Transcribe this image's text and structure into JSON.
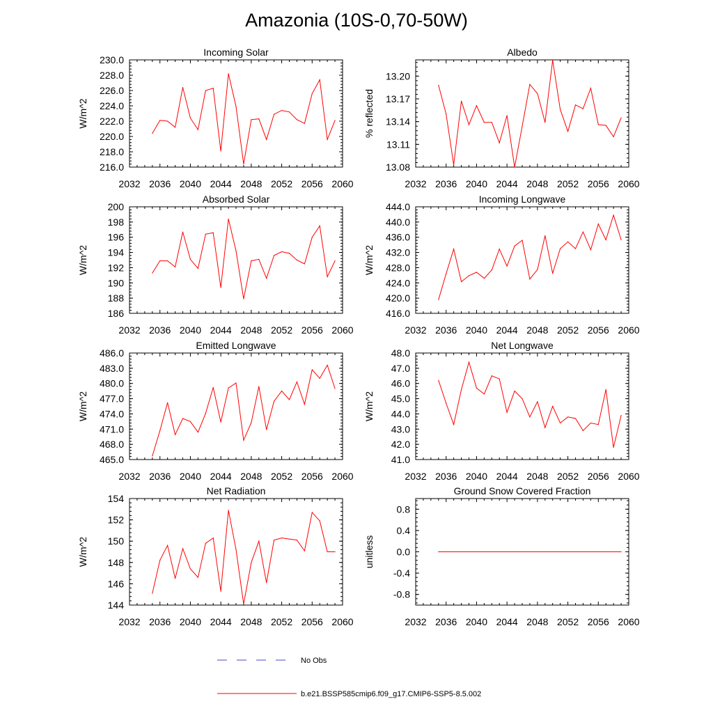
{
  "title": "Amazonia (10S-0,70-50W)",
  "colors": {
    "model": "#ff0000",
    "obs": "#4444cc"
  },
  "legend": {
    "obs_label": "No Obs",
    "model_label": "b.e21.BSSP585cmip6.f09_g17.CMIP6-SSP5-8.5.002"
  },
  "chart_data": [
    {
      "type": "line",
      "title": "Incoming Solar",
      "ylabel": "W/m^2",
      "xlim": [
        2032,
        2060
      ],
      "ylim": [
        216,
        230
      ],
      "xticks": [
        2032,
        2036,
        2040,
        2044,
        2048,
        2052,
        2056,
        2060
      ],
      "yticks": [
        "216.0",
        "218.0",
        "220.0",
        "222.0",
        "224.0",
        "226.0",
        "228.0",
        "230.0"
      ],
      "x": [
        2035,
        2036,
        2037,
        2038,
        2039,
        2040,
        2041,
        2042,
        2043,
        2044,
        2045,
        2046,
        2047,
        2048,
        2049,
        2050,
        2051,
        2052,
        2053,
        2054,
        2055,
        2056,
        2057,
        2058,
        2059
      ],
      "series": [
        {
          "values": [
            220.4,
            222.1,
            222.0,
            221.2,
            226.4,
            222.4,
            220.9,
            226.0,
            226.3,
            218.1,
            228.2,
            223.9,
            216.4,
            222.2,
            222.3,
            219.6,
            222.9,
            223.4,
            223.2,
            222.2,
            221.7,
            225.6,
            227.4,
            219.6,
            222.1
          ]
        }
      ]
    },
    {
      "type": "line",
      "title": "Albedo",
      "ylabel": "% reflected",
      "xlim": [
        2032,
        2060
      ],
      "ylim": [
        13.08,
        13.2214
      ],
      "xticks": [
        2032,
        2036,
        2040,
        2044,
        2048,
        2052,
        2056,
        2060
      ],
      "yticks": [
        "13.08",
        "13.11",
        "13.14",
        "13.17",
        "13.20"
      ],
      "x": [
        2035,
        2036,
        2037,
        2038,
        2039,
        2040,
        2041,
        2042,
        2043,
        2044,
        2045,
        2046,
        2047,
        2048,
        2049,
        2050,
        2051,
        2052,
        2053,
        2054,
        2055,
        2056,
        2057,
        2058,
        2059
      ],
      "series": [
        {
          "values": [
            13.188,
            13.15,
            13.083,
            13.167,
            13.136,
            13.161,
            13.139,
            13.139,
            13.112,
            13.148,
            13.08,
            13.134,
            13.189,
            13.177,
            13.139,
            13.221,
            13.156,
            13.127,
            13.162,
            13.157,
            13.184,
            13.136,
            13.135,
            13.12,
            13.145
          ]
        }
      ]
    },
    {
      "type": "line",
      "title": "Absorbed Solar",
      "ylabel": "W/m^2",
      "xlim": [
        2032,
        2060
      ],
      "ylim": [
        186,
        200
      ],
      "xticks": [
        2032,
        2036,
        2040,
        2044,
        2048,
        2052,
        2056,
        2060
      ],
      "yticks": [
        "186",
        "188",
        "190",
        "192",
        "194",
        "196",
        "198",
        "200"
      ],
      "x": [
        2035,
        2036,
        2037,
        2038,
        2039,
        2040,
        2041,
        2042,
        2043,
        2044,
        2045,
        2046,
        2047,
        2048,
        2049,
        2050,
        2051,
        2052,
        2053,
        2054,
        2055,
        2056,
        2057,
        2058,
        2059
      ],
      "series": [
        {
          "values": [
            191.3,
            192.9,
            192.9,
            192.1,
            196.7,
            193.1,
            191.9,
            196.4,
            196.6,
            189.4,
            198.4,
            194.2,
            187.9,
            192.9,
            193.1,
            190.6,
            193.6,
            194.1,
            193.9,
            193.0,
            192.5,
            196.0,
            197.5,
            190.8,
            192.9
          ]
        }
      ]
    },
    {
      "type": "line",
      "title": "Incoming Longwave",
      "ylabel": "W/m^2",
      "xlim": [
        2032,
        2060
      ],
      "ylim": [
        416,
        444
      ],
      "xticks": [
        2032,
        2036,
        2040,
        2044,
        2048,
        2052,
        2056,
        2060
      ],
      "yticks": [
        "416.0",
        "420.0",
        "424.0",
        "428.0",
        "432.0",
        "436.0",
        "440.0",
        "444.0"
      ],
      "x": [
        2035,
        2036,
        2037,
        2038,
        2039,
        2040,
        2041,
        2042,
        2043,
        2044,
        2045,
        2046,
        2047,
        2048,
        2049,
        2050,
        2051,
        2052,
        2053,
        2054,
        2055,
        2056,
        2057,
        2058,
        2059
      ],
      "series": [
        {
          "values": [
            419.6,
            426.4,
            432.9,
            424.3,
            425.9,
            426.8,
            425.2,
            427.4,
            432.9,
            428.4,
            433.7,
            435.2,
            425.0,
            427.5,
            436.4,
            426.5,
            433.0,
            434.8,
            433.0,
            437.4,
            432.7,
            439.5,
            435.3,
            441.8,
            435.3
          ]
        }
      ]
    },
    {
      "type": "line",
      "title": "Emitted Longwave",
      "ylabel": "W/m^2",
      "xlim": [
        2032,
        2060
      ],
      "ylim": [
        465,
        486
      ],
      "xticks": [
        2032,
        2036,
        2040,
        2044,
        2048,
        2052,
        2056,
        2060
      ],
      "yticks": [
        "465.0",
        "468.0",
        "471.0",
        "474.0",
        "477.0",
        "480.0",
        "483.0",
        "486.0"
      ],
      "x": [
        2035,
        2036,
        2037,
        2038,
        2039,
        2040,
        2041,
        2042,
        2043,
        2044,
        2045,
        2046,
        2047,
        2048,
        2049,
        2050,
        2051,
        2052,
        2053,
        2054,
        2055,
        2056,
        2057,
        2058,
        2059
      ],
      "series": [
        {
          "values": [
            465.7,
            470.7,
            476.2,
            469.9,
            473.1,
            472.5,
            470.4,
            474.1,
            479.2,
            472.4,
            479.1,
            480.1,
            468.8,
            472.3,
            479.4,
            470.9,
            476.5,
            478.5,
            476.8,
            480.3,
            475.9,
            482.7,
            481.0,
            483.6,
            479.0
          ]
        }
      ]
    },
    {
      "type": "line",
      "title": "Net Longwave",
      "ylabel": "W/m^2",
      "xlim": [
        2032,
        2060
      ],
      "ylim": [
        41,
        48
      ],
      "xticks": [
        2032,
        2036,
        2040,
        2044,
        2048,
        2052,
        2056,
        2060
      ],
      "yticks": [
        "41.0",
        "42.0",
        "43.0",
        "44.0",
        "45.0",
        "46.0",
        "47.0",
        "48.0"
      ],
      "x": [
        2035,
        2036,
        2037,
        2038,
        2039,
        2040,
        2041,
        2042,
        2043,
        2044,
        2045,
        2046,
        2047,
        2048,
        2049,
        2050,
        2051,
        2052,
        2053,
        2054,
        2055,
        2056,
        2057,
        2058,
        2059
      ],
      "series": [
        {
          "values": [
            46.2,
            44.7,
            43.3,
            45.6,
            47.4,
            45.7,
            45.3,
            46.5,
            46.3,
            44.1,
            45.5,
            45.0,
            43.8,
            44.8,
            43.1,
            44.5,
            43.4,
            43.8,
            43.7,
            42.9,
            43.4,
            43.3,
            45.6,
            41.8,
            43.9
          ]
        }
      ]
    },
    {
      "type": "line",
      "title": "Net Radiation",
      "ylabel": "W/m^2",
      "xlim": [
        2032,
        2060
      ],
      "ylim": [
        144,
        154
      ],
      "xticks": [
        2032,
        2036,
        2040,
        2044,
        2048,
        2052,
        2056,
        2060
      ],
      "yticks": [
        "144",
        "146",
        "148",
        "150",
        "152",
        "154"
      ],
      "x": [
        2035,
        2036,
        2037,
        2038,
        2039,
        2040,
        2041,
        2042,
        2043,
        2044,
        2045,
        2046,
        2047,
        2048,
        2049,
        2050,
        2051,
        2052,
        2053,
        2054,
        2055,
        2056,
        2057,
        2058,
        2059
      ],
      "series": [
        {
          "values": [
            145.1,
            148.2,
            149.6,
            146.5,
            149.3,
            147.4,
            146.6,
            149.8,
            150.3,
            145.3,
            152.9,
            149.2,
            144.1,
            148.0,
            150.0,
            146.1,
            150.1,
            150.3,
            150.2,
            150.1,
            149.1,
            152.7,
            151.9,
            149.0,
            149.0
          ]
        }
      ]
    },
    {
      "type": "line",
      "title": "Ground Snow Covered Fraction",
      "ylabel": "unitless",
      "xlim": [
        2032,
        2060
      ],
      "ylim": [
        -1.0,
        1.0
      ],
      "xticks": [
        2032,
        2036,
        2040,
        2044,
        2048,
        2052,
        2056,
        2060
      ],
      "yticks": [
        "-0.8",
        "-0.4",
        "0.0",
        "0.4",
        "0.8"
      ],
      "x": [
        2035,
        2036,
        2037,
        2038,
        2039,
        2040,
        2041,
        2042,
        2043,
        2044,
        2045,
        2046,
        2047,
        2048,
        2049,
        2050,
        2051,
        2052,
        2053,
        2054,
        2055,
        2056,
        2057,
        2058,
        2059
      ],
      "series": [
        {
          "values": [
            0,
            0,
            0,
            0,
            0,
            0,
            0,
            0,
            0,
            0,
            0,
            0,
            0,
            0,
            0,
            0,
            0,
            0,
            0,
            0,
            0,
            0,
            0,
            0,
            0
          ]
        }
      ]
    }
  ]
}
